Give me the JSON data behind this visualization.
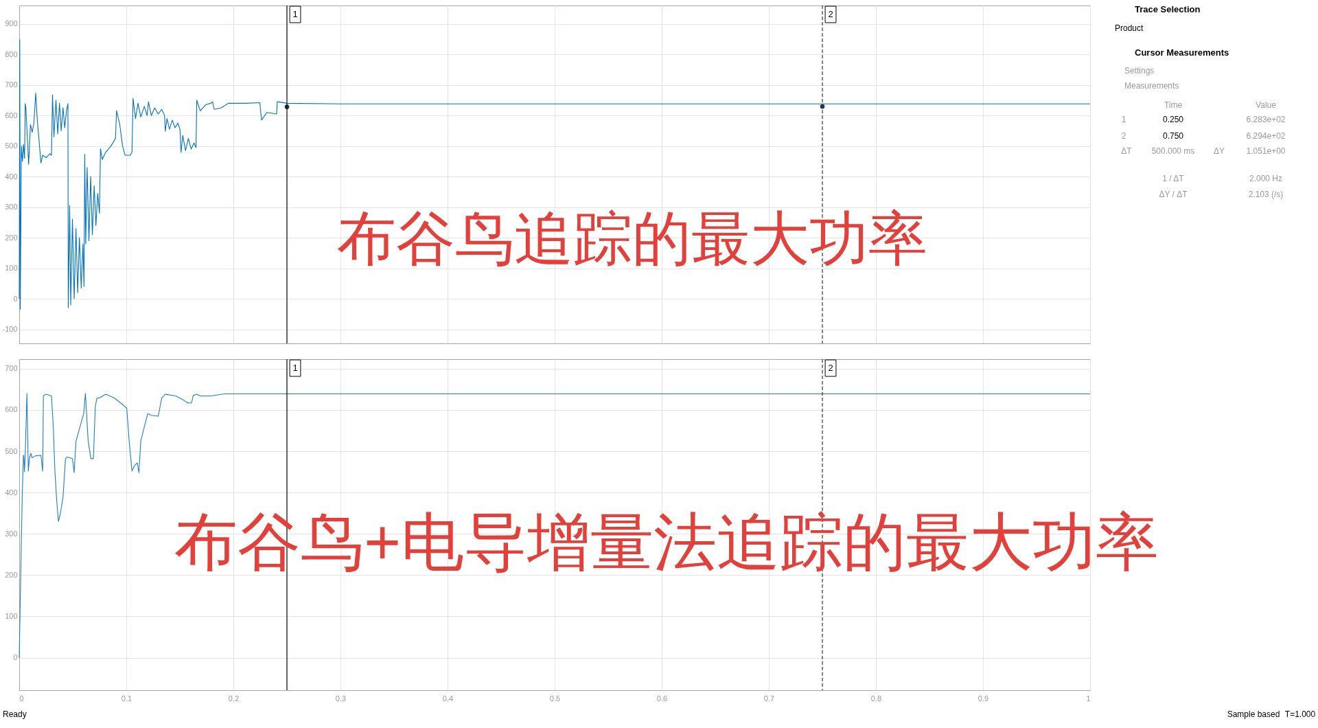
{
  "chart_data": [
    {
      "type": "line",
      "annotations": [
        "布谷鸟追踪的最大功率",
        "1",
        "2"
      ],
      "series": [
        {
          "color": "#0072bd",
          "x": [
            0,
            0.0005,
            0.001,
            0.002,
            0.003,
            0.004,
            0.005,
            0.0056,
            0.0062,
            0.0088,
            0.0105,
            0.0121,
            0.0137,
            0.0154,
            0.017,
            0.0203,
            0.0219,
            0.0252,
            0.0285,
            0.0301,
            0.0311,
            0.0324,
            0.0343,
            0.036,
            0.0376,
            0.0392,
            0.0409,
            0.0425,
            0.0441,
            0.0455,
            0.0458,
            0.0471,
            0.0481,
            0.0497,
            0.0513,
            0.053,
            0.0546,
            0.0562,
            0.0579,
            0.0595,
            0.0605,
            0.0612,
            0.0621,
            0.0634,
            0.0651,
            0.0667,
            0.0683,
            0.07,
            0.0716,
            0.0733,
            0.0749,
            0.0759,
            0.0775,
            0.0808,
            0.0857,
            0.0899,
            0.0909,
            0.0939,
            0.0965,
            0.0988,
            0.1037,
            0.1053,
            0.1063,
            0.1086,
            0.1109,
            0.1135,
            0.1168,
            0.1194,
            0.1207,
            0.1233,
            0.1266,
            0.1298,
            0.1331,
            0.1357,
            0.1364,
            0.138,
            0.1403,
            0.1429,
            0.1455,
            0.1481,
            0.1501,
            0.1511,
            0.1527,
            0.1553,
            0.1579,
            0.1606,
            0.1632,
            0.1651,
            0.1658,
            0.1691,
            0.174,
            0.1789,
            0.1805,
            0.1821,
            0.1887,
            0.1952,
            0.2116,
            0.2247,
            0.2263,
            0.2312,
            0.2404,
            0.241,
            0.2502,
            0.3,
            0.4,
            0.5,
            0.6,
            0.7,
            0.8,
            0.9,
            1
          ],
          "values": [
            0,
            848,
            -34,
            500,
            450,
            505,
            460,
            639,
            627,
            440,
            570,
            545,
            575,
            673,
            580,
            445,
            470,
            462,
            475,
            470,
            667,
            530,
            650,
            540,
            640,
            550,
            625,
            560,
            615,
            639,
            -29,
            305,
            -20,
            260,
            0,
            230,
            20,
            200,
            35,
            180,
            40,
            473,
            180,
            430,
            190,
            400,
            210,
            370,
            240,
            345,
            280,
            491,
            456,
            480,
            500,
            525,
            616,
            570,
            500,
            470,
            470,
            480,
            656,
            590,
            640,
            595,
            630,
            600,
            645,
            600,
            625,
            605,
            620,
            600,
            548,
            590,
            555,
            585,
            560,
            575,
            555,
            479,
            535,
            485,
            525,
            490,
            510,
            495,
            650,
            615,
            635,
            640,
            645,
            620,
            625,
            640,
            640,
            642,
            585,
            610,
            605,
            645,
            640,
            638,
            638,
            638,
            638,
            638,
            638,
            638,
            638
          ]
        },
        {
          "type": "scatter",
          "color": "#1b3a5a",
          "marker": "circle",
          "x": [
            0.25,
            0.75
          ],
          "values": [
            628.3,
            629.4
          ]
        }
      ],
      "xlim": [
        0,
        1
      ],
      "xticks": [
        0,
        0.1,
        0.2,
        0.3,
        0.4,
        0.5,
        0.6,
        0.7,
        0.8,
        0.9,
        1
      ],
      "ylim": [
        -146,
        960
      ],
      "yticks": [
        -100,
        0,
        100,
        200,
        300,
        400,
        500,
        600,
        700,
        800,
        900
      ],
      "grid": true,
      "tick_labels": "y",
      "ref_lines": [
        {
          "axis": "x",
          "value": 0.25,
          "color": "#000000",
          "line_style": "solid"
        },
        {
          "axis": "x",
          "value": 0.75,
          "color": "#333333",
          "line_style": "dashed"
        }
      ]
    },
    {
      "type": "line",
      "annotations": [
        "布谷鸟+电导增量法追踪的最大功率",
        "1",
        "2"
      ],
      "series": [
        {
          "color": "#1f7fc4",
          "x": [
            0,
            0.0007,
            0.0016,
            0.0029,
            0.0039,
            0.0043,
            0.0049,
            0.0056,
            0.0072,
            0.0085,
            0.0095,
            0.0108,
            0.0121,
            0.0154,
            0.0203,
            0.0219,
            0.0226,
            0.0252,
            0.0301,
            0.0317,
            0.0334,
            0.035,
            0.0366,
            0.0383,
            0.0409,
            0.0432,
            0.0448,
            0.0497,
            0.0513,
            0.053,
            0.0579,
            0.0602,
            0.0618,
            0.0644,
            0.067,
            0.0693,
            0.071,
            0.0726,
            0.0749,
            0.0808,
            0.0889,
            0.0971,
            0.1004,
            0.1027,
            0.1053,
            0.1076,
            0.1102,
            0.1118,
            0.1135,
            0.1167,
            0.12,
            0.1233,
            0.1298,
            0.1331,
            0.1364,
            0.1462,
            0.1527,
            0.1576,
            0.1609,
            0.1625,
            0.1658,
            0.1691,
            0.1789,
            0.192,
            0.3,
            0.5,
            0.75,
            1
          ],
          "values": [
            0,
            100,
            230,
            400,
            490,
            490,
            450,
            490,
            640,
            452,
            482,
            495,
            484,
            489,
            490,
            452,
            635,
            638,
            634,
            566,
            448,
            381,
            330,
            347,
            389,
            482,
            486,
            482,
            448,
            524,
            570,
            591,
            640,
            524,
            482,
            482,
            608,
            629,
            629,
            638,
            629,
            612,
            604,
            524,
            452,
            465,
            472,
            448,
            524,
            558,
            591,
            587,
            585,
            629,
            638,
            634,
            625,
            617,
            617,
            635,
            638,
            634,
            634,
            639,
            639,
            639,
            639,
            639
          ]
        }
      ],
      "xlim": [
        0,
        1
      ],
      "xticks": [
        0,
        0.1,
        0.2,
        0.3,
        0.4,
        0.5,
        0.6,
        0.7,
        0.8,
        0.9,
        1
      ],
      "ylim": [
        -79,
        723
      ],
      "yticks": [
        0,
        100,
        200,
        300,
        400,
        500,
        600,
        700
      ],
      "grid": true,
      "ref_lines": [
        {
          "axis": "x",
          "value": 0.25,
          "color": "#000000",
          "line_style": "solid"
        },
        {
          "axis": "x",
          "value": 0.75,
          "color": "#333333",
          "line_style": "dashed"
        }
      ]
    },
    {
      "type": "other",
      "title": "Trace Selection",
      "annotations": [
        "Product"
      ]
    },
    {
      "type": "other",
      "title": "Cursor Measurements",
      "annotations": [
        "Settings",
        "Measurements",
        "Time",
        "Value",
        "1",
        "0.250",
        "6.283e+02",
        "2",
        "0.750",
        "6.294e+02",
        "ΔT",
        "500.000 ms",
        "ΔY",
        "1.051e+00",
        "1 / ΔT",
        "2.000 Hz",
        "ΔY / ΔT",
        "2.103 (/s)"
      ]
    },
    {
      "type": "other",
      "annotations": [
        "Ready",
        "Sample based",
        "T=1.000"
      ]
    }
  ]
}
